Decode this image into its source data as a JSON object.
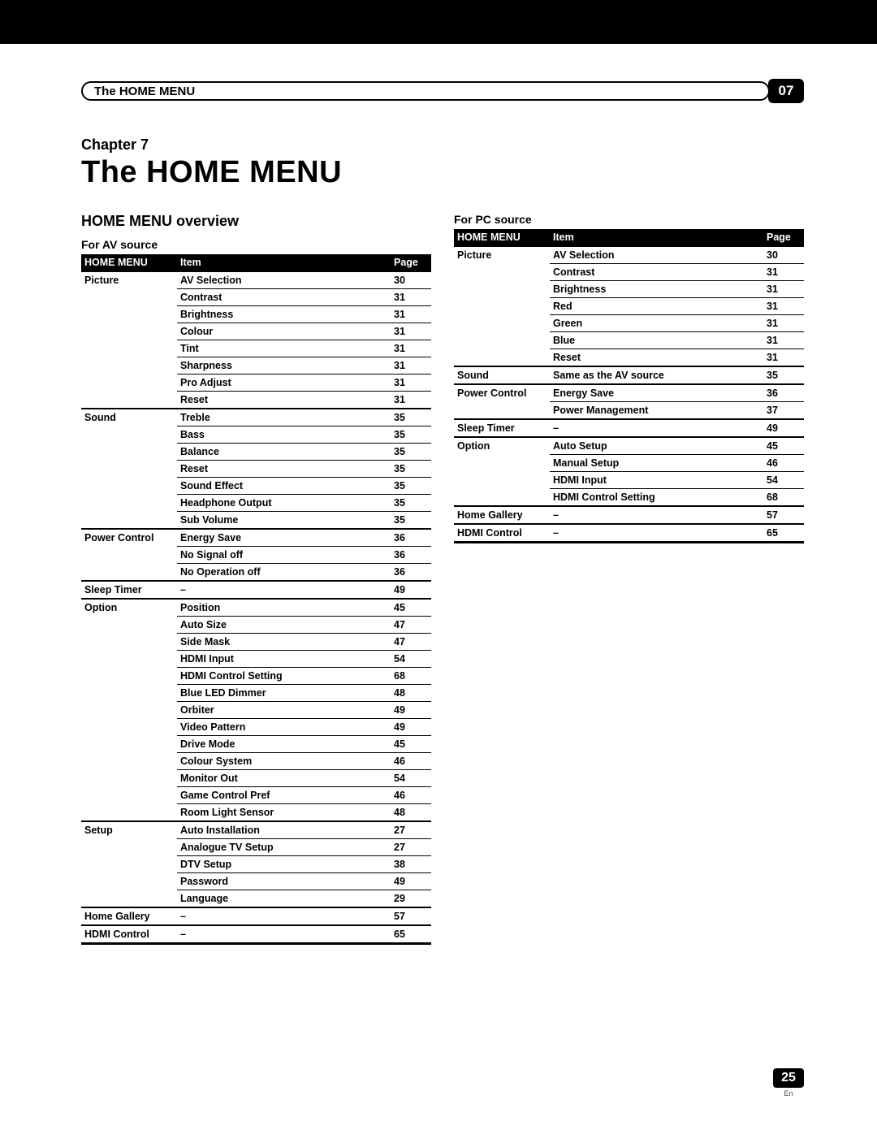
{
  "header": {
    "pill_title": "The HOME MENU",
    "chapter_number": "07"
  },
  "chapter": {
    "label": "Chapter 7",
    "title": "The HOME MENU"
  },
  "section_heading": "HOME MENU overview",
  "colors": {
    "header_bg": "#000000",
    "header_fg": "#ffffff",
    "row_border": "#000000"
  },
  "table_columns": [
    "HOME MENU",
    "Item",
    "Page"
  ],
  "av": {
    "heading": "For AV source",
    "groups": [
      {
        "category": "Picture",
        "rows": [
          {
            "item": "AV Selection",
            "page": "30"
          },
          {
            "item": "Contrast",
            "page": "31"
          },
          {
            "item": "Brightness",
            "page": "31"
          },
          {
            "item": "Colour",
            "page": "31"
          },
          {
            "item": "Tint",
            "page": "31"
          },
          {
            "item": "Sharpness",
            "page": "31"
          },
          {
            "item": "Pro Adjust",
            "page": "31"
          },
          {
            "item": "Reset",
            "page": "31"
          }
        ]
      },
      {
        "category": "Sound",
        "rows": [
          {
            "item": "Treble",
            "page": "35"
          },
          {
            "item": "Bass",
            "page": "35"
          },
          {
            "item": "Balance",
            "page": "35"
          },
          {
            "item": "Reset",
            "page": "35"
          },
          {
            "item": "Sound Effect",
            "page": "35"
          },
          {
            "item": "Headphone Output",
            "page": "35"
          },
          {
            "item": "Sub Volume",
            "page": "35"
          }
        ]
      },
      {
        "category": "Power Control",
        "rows": [
          {
            "item": "Energy Save",
            "page": "36"
          },
          {
            "item": "No Signal off",
            "page": "36"
          },
          {
            "item": "No Operation off",
            "page": "36"
          }
        ]
      },
      {
        "category": "Sleep Timer",
        "rows": [
          {
            "item": "–",
            "page": "49"
          }
        ]
      },
      {
        "category": "Option",
        "rows": [
          {
            "item": "Position",
            "page": "45"
          },
          {
            "item": "Auto Size",
            "page": "47"
          },
          {
            "item": "Side Mask",
            "page": "47"
          },
          {
            "item": "HDMI Input",
            "page": "54"
          },
          {
            "item": "HDMI Control Setting",
            "page": "68"
          },
          {
            "item": "Blue LED Dimmer",
            "page": "48"
          },
          {
            "item": "Orbiter",
            "page": "49"
          },
          {
            "item": "Video Pattern",
            "page": "49"
          },
          {
            "item": "Drive Mode",
            "page": "45"
          },
          {
            "item": "Colour System",
            "page": "46"
          },
          {
            "item": "Monitor Out",
            "page": "54"
          },
          {
            "item": "Game Control Pref",
            "page": "46"
          },
          {
            "item": "Room Light Sensor",
            "page": "48"
          }
        ]
      },
      {
        "category": "Setup",
        "rows": [
          {
            "item": "Auto Installation",
            "page": "27"
          },
          {
            "item": "Analogue TV Setup",
            "page": "27"
          },
          {
            "item": "DTV Setup",
            "page": "38"
          },
          {
            "item": "Password",
            "page": "49"
          },
          {
            "item": "Language",
            "page": "29"
          }
        ]
      },
      {
        "category": "Home Gallery",
        "rows": [
          {
            "item": "–",
            "page": "57"
          }
        ]
      },
      {
        "category": "HDMI Control",
        "rows": [
          {
            "item": "–",
            "page": "65"
          }
        ]
      }
    ]
  },
  "pc": {
    "heading": "For PC source",
    "groups": [
      {
        "category": "Picture",
        "rows": [
          {
            "item": "AV Selection",
            "page": "30"
          },
          {
            "item": "Contrast",
            "page": "31"
          },
          {
            "item": "Brightness",
            "page": "31"
          },
          {
            "item": "Red",
            "page": "31"
          },
          {
            "item": "Green",
            "page": "31"
          },
          {
            "item": "Blue",
            "page": "31"
          },
          {
            "item": "Reset",
            "page": "31"
          }
        ]
      },
      {
        "category": "Sound",
        "rows": [
          {
            "item": "Same as the AV source",
            "page": "35"
          }
        ]
      },
      {
        "category": "Power Control",
        "rows": [
          {
            "item": "Energy Save",
            "page": "36"
          },
          {
            "item": "Power Management",
            "page": "37"
          }
        ]
      },
      {
        "category": "Sleep Timer",
        "rows": [
          {
            "item": "–",
            "page": "49"
          }
        ]
      },
      {
        "category": "Option",
        "rows": [
          {
            "item": "Auto Setup",
            "page": "45"
          },
          {
            "item": "Manual Setup",
            "page": "46"
          },
          {
            "item": "HDMI Input",
            "page": "54"
          },
          {
            "item": "HDMI Control Setting",
            "page": "68"
          }
        ]
      },
      {
        "category": "Home Gallery",
        "rows": [
          {
            "item": "–",
            "page": "57"
          }
        ]
      },
      {
        "category": "HDMI Control",
        "rows": [
          {
            "item": "–",
            "page": "65"
          }
        ]
      }
    ]
  },
  "footer": {
    "page_number": "25",
    "lang": "En"
  }
}
